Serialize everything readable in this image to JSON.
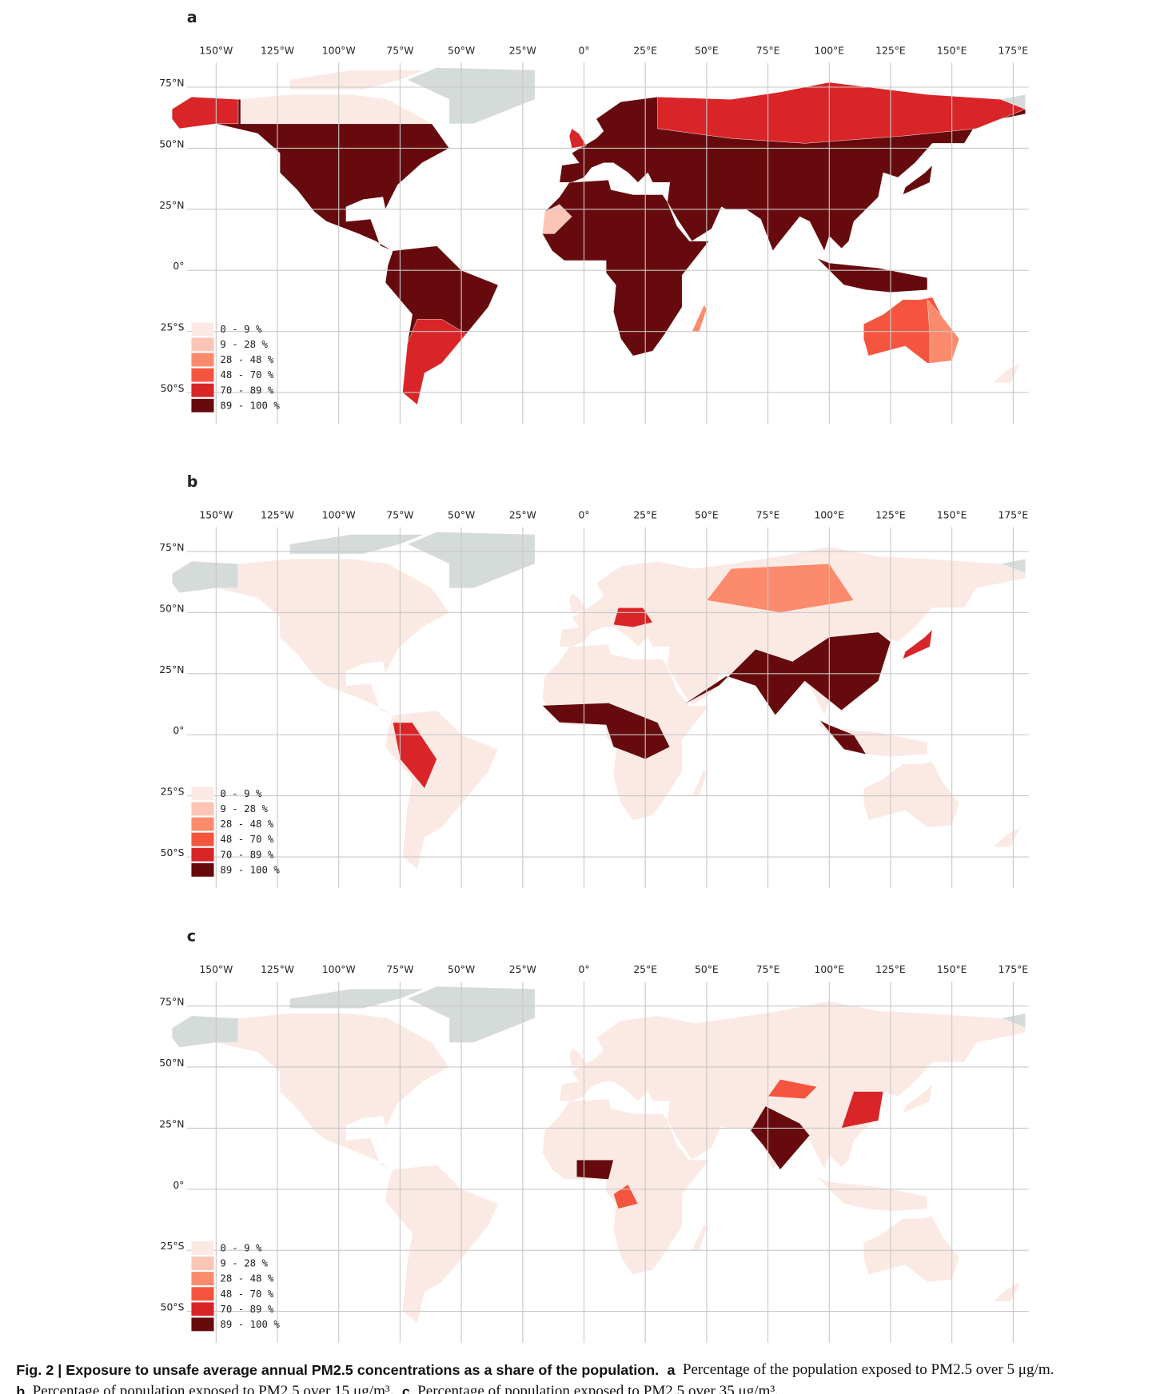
{
  "panels": [
    {
      "label": "a",
      "lon_ticks": [
        {
          "value": -150,
          "label": "150°W"
        },
        {
          "value": -125,
          "label": "125°W"
        },
        {
          "value": -100,
          "label": "100°W"
        },
        {
          "value": -75,
          "label": "75°W"
        },
        {
          "value": -50,
          "label": "50°W"
        },
        {
          "value": -25,
          "label": "25°W"
        },
        {
          "value": 0,
          "label": "0°"
        },
        {
          "value": 25,
          "label": "25°E"
        },
        {
          "value": 50,
          "label": "50°E"
        },
        {
          "value": 75,
          "label": "75°E"
        },
        {
          "value": 100,
          "label": "100°E"
        },
        {
          "value": 125,
          "label": "125°E"
        },
        {
          "value": 150,
          "label": "150°E"
        },
        {
          "value": 175,
          "label": "175°E"
        }
      ],
      "lat_ticks": [
        {
          "value": 75,
          "label": "75°N"
        },
        {
          "value": 50,
          "label": "50°N"
        },
        {
          "value": 25,
          "label": "25°N"
        },
        {
          "value": 0,
          "label": "0°"
        },
        {
          "value": -25,
          "label": "25°S"
        },
        {
          "value": -50,
          "label": "50°S"
        }
      ],
      "legend": [
        "0 - 9 %",
        "9 - 28 %",
        "28 - 48 %",
        "48 - 70 %",
        "70 - 89 %",
        "89 - 100 %"
      ]
    },
    {
      "label": "b",
      "lon_ticks": [
        {
          "value": -150,
          "label": "150°W"
        },
        {
          "value": -125,
          "label": "125°W"
        },
        {
          "value": -100,
          "label": "100°W"
        },
        {
          "value": -75,
          "label": "75°W"
        },
        {
          "value": -50,
          "label": "50°W"
        },
        {
          "value": -25,
          "label": "25°W"
        },
        {
          "value": 0,
          "label": "0°"
        },
        {
          "value": 25,
          "label": "25°E"
        },
        {
          "value": 50,
          "label": "50°E"
        },
        {
          "value": 75,
          "label": "75°E"
        },
        {
          "value": 100,
          "label": "100°E"
        },
        {
          "value": 125,
          "label": "125°E"
        },
        {
          "value": 150,
          "label": "150°E"
        },
        {
          "value": 175,
          "label": "175°E"
        }
      ],
      "lat_ticks": [
        {
          "value": 75,
          "label": "75°N"
        },
        {
          "value": 50,
          "label": "50°N"
        },
        {
          "value": 25,
          "label": "25°N"
        },
        {
          "value": 0,
          "label": "0°"
        },
        {
          "value": -25,
          "label": "25°S"
        },
        {
          "value": -50,
          "label": "50°S"
        }
      ],
      "legend": [
        "0 - 9 %",
        "9 - 28 %",
        "28 - 48 %",
        "48 - 70 %",
        "70 - 89 %",
        "89 - 100 %"
      ]
    },
    {
      "label": "c",
      "lon_ticks": [
        {
          "value": -150,
          "label": "150°W"
        },
        {
          "value": -125,
          "label": "125°W"
        },
        {
          "value": -100,
          "label": "100°W"
        },
        {
          "value": -75,
          "label": "75°W"
        },
        {
          "value": -50,
          "label": "50°W"
        },
        {
          "value": -25,
          "label": "25°W"
        },
        {
          "value": 0,
          "label": "0°"
        },
        {
          "value": 25,
          "label": "25°E"
        },
        {
          "value": 50,
          "label": "50°E"
        },
        {
          "value": 75,
          "label": "75°E"
        },
        {
          "value": 100,
          "label": "100°E"
        },
        {
          "value": 125,
          "label": "125°E"
        },
        {
          "value": 150,
          "label": "150°E"
        },
        {
          "value": 175,
          "label": "175°E"
        }
      ],
      "lat_ticks": [
        {
          "value": 75,
          "label": "75°N"
        },
        {
          "value": 50,
          "label": "50°N"
        },
        {
          "value": 25,
          "label": "25°N"
        },
        {
          "value": 0,
          "label": "0°"
        },
        {
          "value": -25,
          "label": "25°S"
        },
        {
          "value": -50,
          "label": "50°S"
        }
      ],
      "legend": [
        "0 - 9 %",
        "9 - 28 %",
        "28 - 48 %",
        "48 - 70 %",
        "70 - 89 %",
        "89 - 100 %"
      ]
    }
  ],
  "caption": {
    "fig": "Fig. 2 | Exposure to unsafe average annual PM2.5 concentrations as a share of the population.",
    "a_key": "a",
    "a_text": "Percentage of the population exposed to PM2.5 over 5 μg/m.",
    "b_key": "b",
    "b_text": "Percentage of population exposed to PM2.5 over 15 μg/m³.",
    "c_key": "c",
    "c_text": "Percentage of population exposed to PM2.5 over 35 μg/m³."
  }
}
